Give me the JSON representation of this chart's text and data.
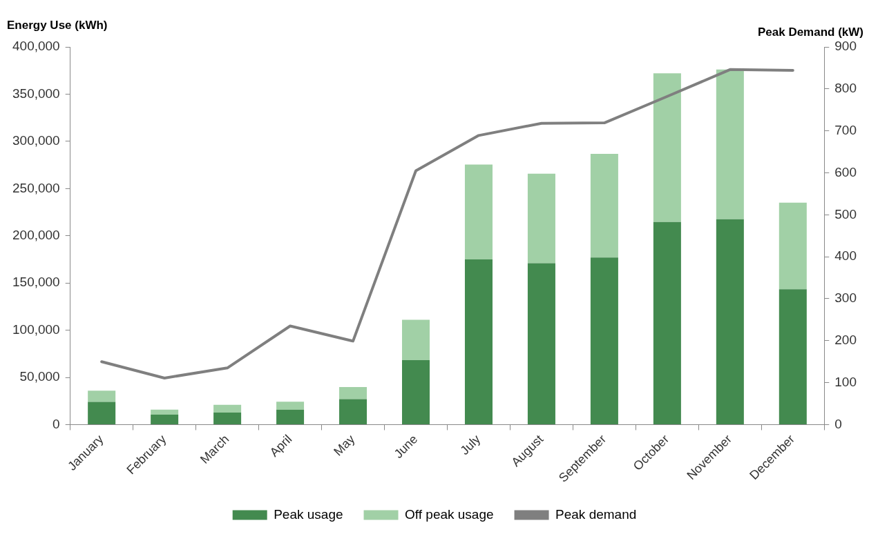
{
  "chart_data": {
    "type": "bar",
    "stacked": true,
    "legend": "bottom",
    "grid": false,
    "marker": "none",
    "line_style": "solid",
    "ylabel": "Energy Use (kWh)",
    "y2label": "Peak Demand (kW)",
    "categories": [
      "January",
      "February",
      "March",
      "April",
      "May",
      "June",
      "July",
      "August",
      "September",
      "October",
      "November",
      "December"
    ],
    "series": [
      {
        "name": "Peak usage",
        "color": "#438a4f",
        "values": [
          24000,
          10500,
          12800,
          15800,
          27000,
          68300,
          175000,
          171000,
          177000,
          214600,
          217600,
          143300
        ]
      },
      {
        "name": "Off peak usage",
        "color": "#a1d0a6",
        "values": [
          12000,
          5300,
          8200,
          8500,
          12800,
          42700,
          100400,
          94700,
          109700,
          157400,
          158400,
          91700
        ]
      },
      {
        "name": "Peak demand",
        "type": "line",
        "axis": "y2",
        "color": "#7f7f7f",
        "values": [
          150,
          111,
          135,
          235,
          199,
          605,
          689,
          718,
          719,
          782,
          846,
          844
        ]
      }
    ],
    "ylim": [
      0,
      400000
    ],
    "yticks": [
      0,
      {
        "value": 50000,
        "label": "50,000"
      },
      {
        "value": 100000,
        "label": "100,000"
      },
      {
        "value": 150000,
        "label": "150,000"
      },
      {
        "value": 200000,
        "label": "200,000"
      },
      {
        "value": 250000,
        "label": "250,000"
      },
      {
        "value": 300000,
        "label": "300,000"
      },
      {
        "value": 350000,
        "label": "350,000"
      },
      {
        "value": 400000,
        "label": "400,000"
      }
    ],
    "y2lim": [
      0,
      900
    ],
    "y2ticks": [
      0,
      100,
      200,
      300,
      400,
      500,
      600,
      700,
      800,
      900
    ]
  }
}
